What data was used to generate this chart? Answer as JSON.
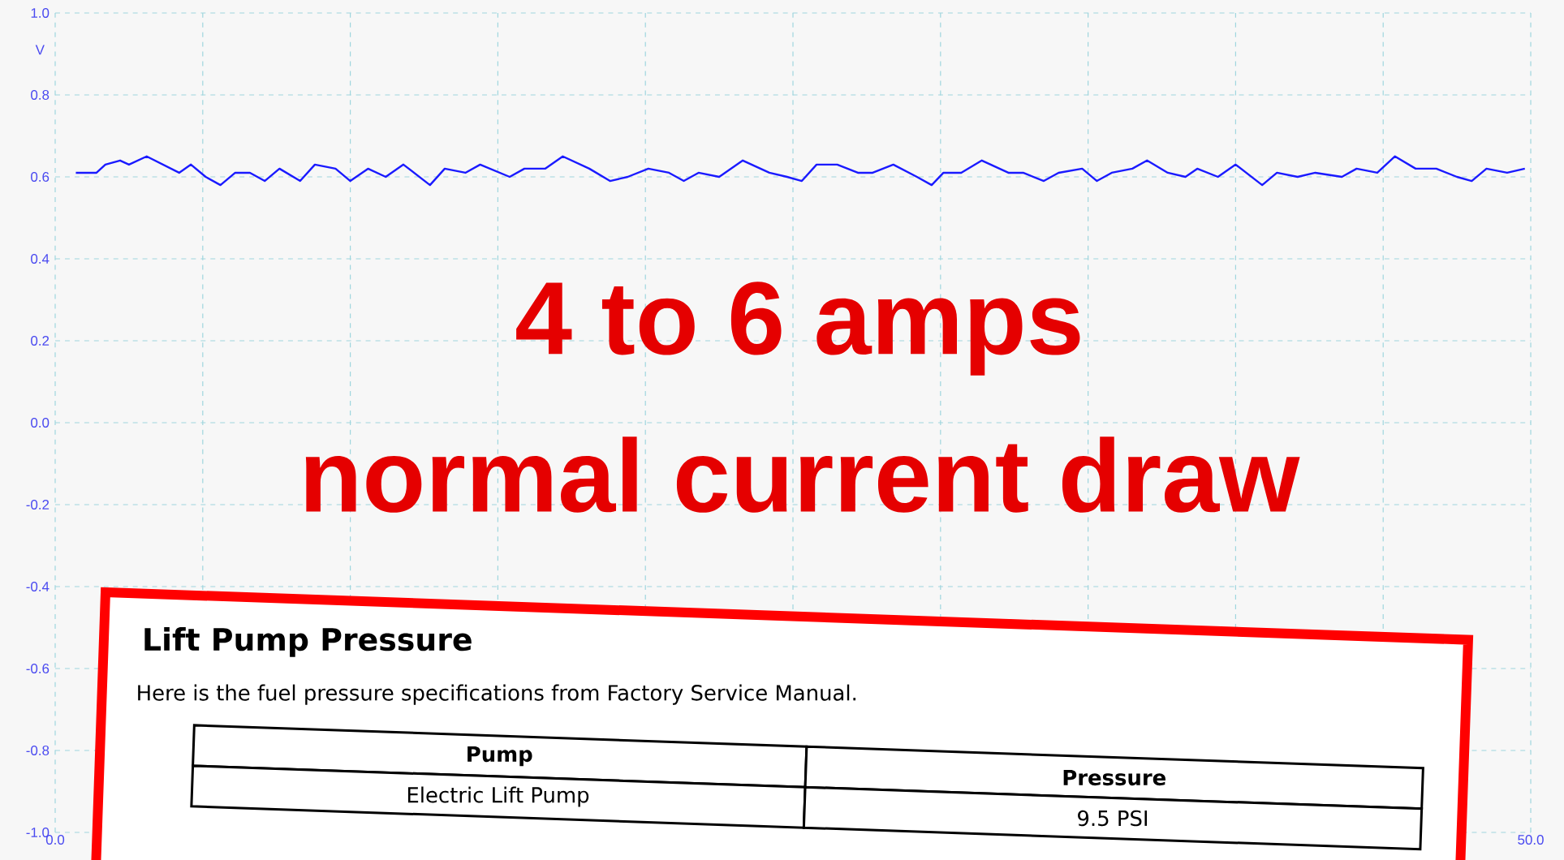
{
  "chart_data": {
    "type": "line",
    "ylabel": "V",
    "xlim": [
      0,
      50
    ],
    "ylim": [
      -1,
      1
    ],
    "xticks": [
      {
        "value": 0,
        "label": "0.0"
      },
      {
        "value": 5,
        "label": null
      },
      {
        "value": 10,
        "label": null
      },
      {
        "value": 15,
        "label": null
      },
      {
        "value": 20,
        "label": null
      },
      {
        "value": 25,
        "label": null
      },
      {
        "value": 30,
        "label": null
      },
      {
        "value": 35,
        "label": null
      },
      {
        "value": 40,
        "label": null
      },
      {
        "value": 45,
        "label": null
      },
      {
        "value": 50,
        "label": "50.0"
      }
    ],
    "yticks": [
      {
        "value": 1,
        "label": "1.0"
      },
      {
        "value": 0.8,
        "label": "0.8"
      },
      {
        "value": 0.6,
        "label": "0.6"
      },
      {
        "value": 0.4,
        "label": "0.4"
      },
      {
        "value": 0.2,
        "label": "0.2"
      },
      {
        "value": 0,
        "label": "0.0"
      },
      {
        "value": -0.2,
        "label": "-0.2"
      },
      {
        "value": -0.4,
        "label": "-0.4"
      },
      {
        "value": -0.6,
        "label": "-0.6"
      },
      {
        "value": -0.8,
        "label": "-0.8"
      },
      {
        "value": -1,
        "label": "-1.0"
      }
    ],
    "grid": true,
    "x": [
      0.7,
      1.4,
      1.7,
      2.2,
      2.5,
      3.1,
      4.2,
      4.6,
      5.1,
      5.6,
      6.1,
      6.6,
      7.1,
      7.6,
      8.3,
      8.8,
      9.5,
      10.0,
      10.6,
      11.2,
      11.8,
      12.7,
      13.2,
      13.9,
      14.4,
      15.4,
      15.9,
      16.6,
      17.2,
      18.1,
      18.8,
      19.4,
      20.1,
      20.8,
      21.3,
      21.8,
      22.5,
      23.3,
      24.2,
      24.8,
      25.3,
      25.8,
      26.5,
      27.2,
      27.7,
      28.4,
      29.2,
      29.7,
      30.1,
      30.7,
      31.4,
      32.3,
      32.8,
      33.5,
      34.0,
      34.8,
      35.3,
      35.8,
      36.5,
      37.0,
      37.7,
      38.3,
      38.7,
      39.4,
      40.0,
      40.9,
      41.4,
      42.1,
      42.7,
      43.6,
      44.1,
      44.8,
      45.4,
      46.1,
      46.8,
      47.5,
      48.0,
      48.5,
      49.2,
      49.8
    ],
    "series": [
      {
        "color": "#1a1aff",
        "values": [
          0.61,
          0.61,
          0.63,
          0.64,
          0.63,
          0.65,
          0.61,
          0.63,
          0.6,
          0.58,
          0.61,
          0.61,
          0.59,
          0.62,
          0.59,
          0.63,
          0.62,
          0.59,
          0.62,
          0.6,
          0.63,
          0.58,
          0.62,
          0.61,
          0.63,
          0.6,
          0.62,
          0.62,
          0.65,
          0.62,
          0.59,
          0.6,
          0.62,
          0.61,
          0.59,
          0.61,
          0.6,
          0.64,
          0.61,
          0.6,
          0.59,
          0.63,
          0.63,
          0.61,
          0.61,
          0.63,
          0.6,
          0.58,
          0.61,
          0.61,
          0.64,
          0.61,
          0.61,
          0.59,
          0.61,
          0.62,
          0.59,
          0.61,
          0.62,
          0.64,
          0.61,
          0.6,
          0.62,
          0.6,
          0.63,
          0.58,
          0.61,
          0.6,
          0.61,
          0.6,
          0.62,
          0.61,
          0.65,
          0.62,
          0.62,
          0.6,
          0.59,
          0.62,
          0.61,
          0.62
        ]
      }
    ],
    "annotations": [
      "4 to 6 amps",
      "normal current draw",
      "Lift Pump Pressure",
      "Here is the fuel pressure specifications from Factory Service Manual.",
      "Pump",
      "Pressure",
      "Electric Lift Pump",
      "9.5 PSI"
    ]
  }
}
